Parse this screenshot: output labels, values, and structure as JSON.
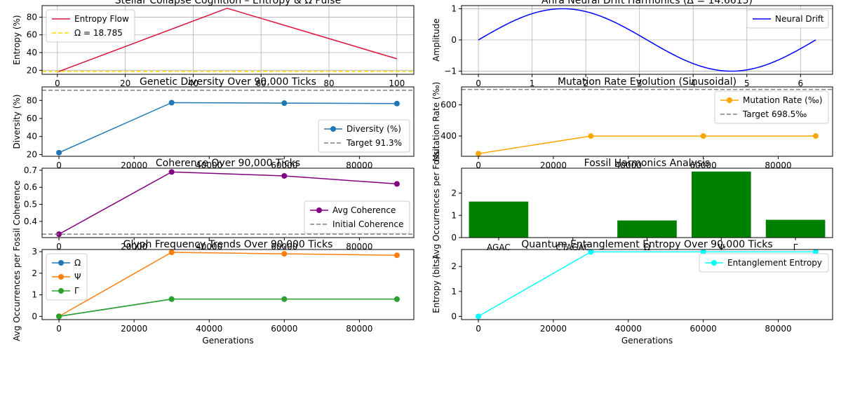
{
  "figure": {
    "background": "#ffffff"
  },
  "chart_data": [
    {
      "id": "entropy",
      "type": "line",
      "title": "Stellar Collapse Cognition – Entropy & Ω Pulse",
      "xlabel": "",
      "ylabel": "Entropy (%)",
      "xlim": [
        -4.5,
        105
      ],
      "ylim": [
        15.5,
        93
      ],
      "xticks": [
        0,
        20,
        40,
        60,
        80,
        100
      ],
      "yticks": [
        20,
        40,
        60,
        80
      ],
      "grid": true,
      "legend_position": "top-left",
      "series": [
        {
          "name": "Entropy Flow",
          "x": [
            0,
            50,
            100
          ],
          "y": [
            18,
            90,
            33
          ],
          "color": "#dc143c",
          "style": "solid",
          "marker": false
        },
        {
          "name": "Ω = 18.785",
          "hline": 18.785,
          "color": "#ffd700",
          "style": "dashed"
        }
      ]
    },
    {
      "id": "neural",
      "type": "line",
      "title": "Ahra Neural Drift Harmonics (Δ = 14.6615)",
      "xlabel": "",
      "ylabel": "Amplitude",
      "xlim": [
        -0.314,
        6.597
      ],
      "ylim": [
        -1.1,
        1.1
      ],
      "xticks": [
        0,
        1,
        2,
        3,
        4,
        5,
        6
      ],
      "yticks": [
        -1,
        0,
        1
      ],
      "grid": true,
      "legend_position": "top-right",
      "series": [
        {
          "name": "Neural Drift",
          "function": "sin",
          "x_range": [
            0,
            6.283
          ],
          "color": "#0000ff",
          "style": "solid",
          "marker": false
        }
      ]
    },
    {
      "id": "diversity",
      "type": "line",
      "title": "Genetic Diversity Over 90,000 Ticks",
      "xlabel": "",
      "ylabel": "Diversity (%)",
      "xlim": [
        -4500,
        94500
      ],
      "ylim": [
        18,
        95
      ],
      "xticks": [
        0,
        20000,
        40000,
        60000,
        80000
      ],
      "yticks": [
        20,
        40,
        60,
        80
      ],
      "grid": false,
      "legend_position": "lower-right",
      "series": [
        {
          "name": "Diversity (%)",
          "x": [
            0,
            30000,
            60000,
            90000
          ],
          "y": [
            22,
            77.5,
            77,
            76.5
          ],
          "color": "#1f77b4",
          "style": "solid",
          "marker": true
        },
        {
          "name": "Target 91.3%",
          "hline": 91.3,
          "color": "#808080",
          "style": "dashed"
        }
      ]
    },
    {
      "id": "mutation",
      "type": "line",
      "title": "Mutation Rate Evolution (Sinusoidal)",
      "xlabel": "",
      "ylabel": "Mutation Rate (‰)",
      "xlim": [
        -4500,
        94500
      ],
      "ylim": [
        270,
        715
      ],
      "xticks": [
        0,
        20000,
        40000,
        60000,
        80000
      ],
      "yticks": [
        200,
        400,
        600
      ],
      "grid": false,
      "legend_position": "top-right",
      "series": [
        {
          "name": "Mutation Rate (‰)",
          "x": [
            0,
            30000,
            60000,
            90000
          ],
          "y": [
            287,
            400,
            400,
            400
          ],
          "color": "#ffa500",
          "style": "solid",
          "marker": true
        },
        {
          "name": "Target 698.5‰",
          "hline": 698.5,
          "color": "#808080",
          "style": "dashed"
        }
      ]
    },
    {
      "id": "coherence",
      "type": "line",
      "title": "Coherence Over 90,000 Ticks",
      "xlabel": "",
      "ylabel": "Coherence",
      "xlim": [
        -4500,
        94500
      ],
      "ylim": [
        0.305,
        0.712
      ],
      "xticks": [
        0,
        20000,
        40000,
        60000,
        80000
      ],
      "yticks": [
        0.4,
        0.5,
        0.6,
        0.7
      ],
      "grid": false,
      "legend_position": "lower-right",
      "series": [
        {
          "name": "Avg Coherence",
          "x": [
            0,
            30000,
            60000,
            90000
          ],
          "y": [
            0.325,
            0.69,
            0.667,
            0.62
          ],
          "color": "#800080",
          "style": "solid",
          "marker": true
        },
        {
          "name": "Initial Coherence",
          "hline": 0.325,
          "color": "#808080",
          "style": "dashed"
        }
      ]
    },
    {
      "id": "fossil",
      "type": "bar",
      "title": "Fossil Harmonics Analysis",
      "xlabel": "",
      "ylabel": "Avg Occurrences per Fossil",
      "categories": [
        "AGAC",
        "CTAGAC",
        "Ω",
        "Ψ",
        "Γ"
      ],
      "values": [
        1.62,
        0,
        0.77,
        2.97,
        0.8
      ],
      "ylim": [
        0,
        3.12
      ],
      "yticks": [
        0,
        1,
        2
      ],
      "grid": false,
      "bar_color": "#008000"
    },
    {
      "id": "glyph",
      "type": "line",
      "title": "Glyph Frequency Trends Over 90,000 Ticks",
      "xlabel": "Generations",
      "ylabel": "Avg Occurrences per Fossil",
      "xlim": [
        -4500,
        94500
      ],
      "ylim": [
        -0.15,
        3.1
      ],
      "xticks": [
        0,
        20000,
        40000,
        60000,
        80000
      ],
      "yticks": [
        0,
        1,
        2,
        3
      ],
      "grid": false,
      "legend_position": "top-left",
      "series": [
        {
          "name": "Ω",
          "x": [
            0,
            30000,
            60000,
            90000
          ],
          "y": [
            0,
            0.8,
            0.8,
            0.8
          ],
          "color": "#1f77b4",
          "style": "solid",
          "marker": true
        },
        {
          "name": "Ψ",
          "x": [
            0,
            30000,
            60000,
            90000
          ],
          "y": [
            0,
            2.97,
            2.9,
            2.83
          ],
          "color": "#ff7f0e",
          "style": "solid",
          "marker": true
        },
        {
          "name": "Γ",
          "x": [
            0,
            30000,
            60000,
            90000
          ],
          "y": [
            0,
            0.8,
            0.8,
            0.8
          ],
          "color": "#2ca02c",
          "style": "solid",
          "marker": true
        }
      ]
    },
    {
      "id": "quantum",
      "type": "line",
      "title": "Quantum Entanglement Entropy Over 90,000 Ticks",
      "xlabel": "Generations",
      "ylabel": "Entropy (bits)",
      "xlim": [
        -4500,
        94500
      ],
      "ylim": [
        -0.13,
        2.68
      ],
      "xticks": [
        0,
        20000,
        40000,
        60000,
        80000
      ],
      "yticks": [
        0,
        1,
        2
      ],
      "grid": false,
      "legend_position": "top-right",
      "series": [
        {
          "name": "Entanglement Entropy",
          "x": [
            0,
            30000,
            60000,
            90000
          ],
          "y": [
            0,
            2.585,
            2.585,
            2.585
          ],
          "color": "#00ffff",
          "style": "solid",
          "marker": true
        }
      ]
    }
  ]
}
